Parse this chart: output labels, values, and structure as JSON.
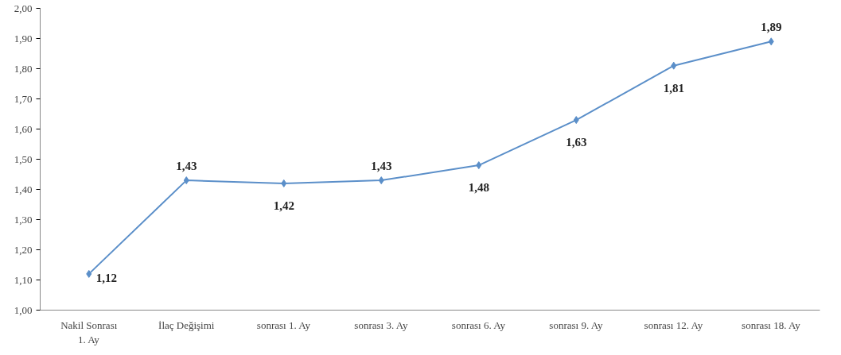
{
  "chart_data": {
    "type": "line",
    "categories": [
      "Nakil Sonrası\n1. Ay",
      "İlaç Değişimi",
      "sonrası 1. Ay",
      "sonrası 3. Ay",
      "sonrası 6. Ay",
      "sonrası 9. Ay",
      "sonrası 12. Ay",
      "sonrası 18. Ay"
    ],
    "series": [
      {
        "color": "#5b8fc9",
        "values": [
          1.12,
          1.43,
          1.42,
          1.43,
          1.48,
          1.63,
          1.81,
          1.89
        ],
        "value_labels": [
          "1,12",
          "1,43",
          "1,42",
          "1,43",
          "1,48",
          "1,63",
          "1,81",
          "1,89"
        ]
      }
    ],
    "ylim": [
      1.0,
      2.0
    ],
    "yticks": [
      {
        "value": 1.0,
        "label": "1,00"
      },
      {
        "value": 1.1,
        "label": "1,10"
      },
      {
        "value": 1.2,
        "label": "1,20"
      },
      {
        "value": 1.3,
        "label": "1,30"
      },
      {
        "value": 1.4,
        "label": "1,40"
      },
      {
        "value": 1.5,
        "label": "1,50"
      },
      {
        "value": 1.6,
        "label": "1,60"
      },
      {
        "value": 1.7,
        "label": "1,70"
      },
      {
        "value": 1.8,
        "label": "1,80"
      },
      {
        "value": 1.9,
        "label": "1,90"
      },
      {
        "value": 2.0,
        "label": "2,00"
      }
    ],
    "grid": false,
    "marker": "diamond",
    "line_style": "solid"
  }
}
